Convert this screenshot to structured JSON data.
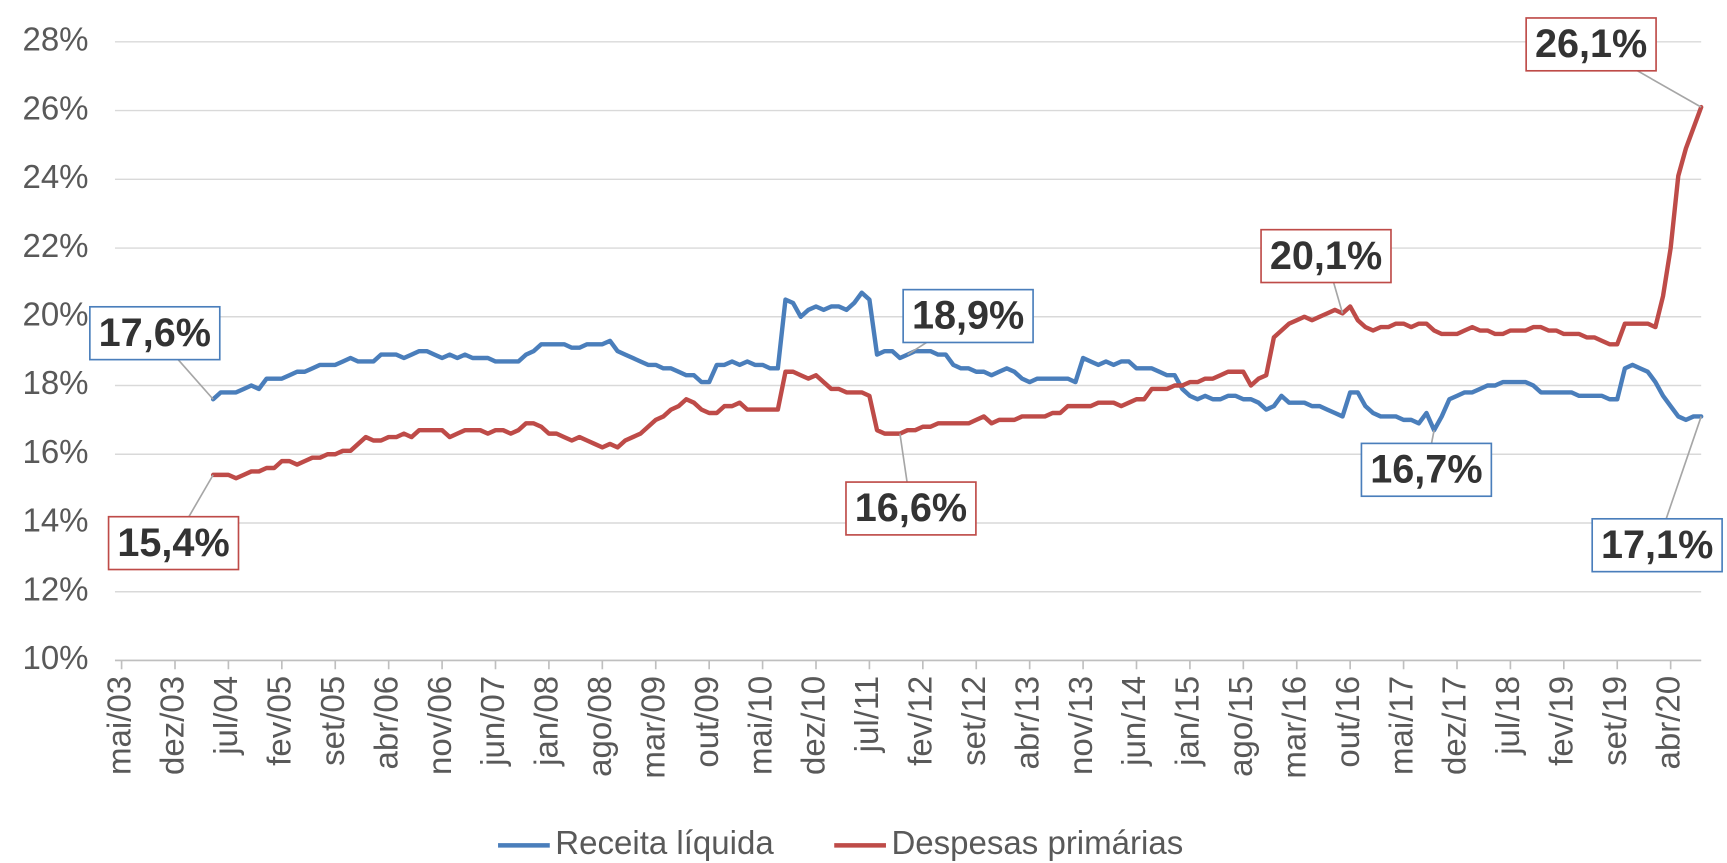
{
  "chart_data": {
    "type": "line",
    "categories": [
      "mai/03",
      null,
      null,
      null,
      null,
      null,
      null,
      "dez/03",
      null,
      null,
      null,
      null,
      null,
      null,
      "jul/04",
      null,
      null,
      null,
      null,
      null,
      null,
      "fev/05",
      null,
      null,
      null,
      null,
      null,
      null,
      "set/05",
      null,
      null,
      null,
      null,
      null,
      null,
      "abr/06",
      null,
      null,
      null,
      null,
      null,
      null,
      "nov/06",
      null,
      null,
      null,
      null,
      null,
      null,
      "jun/07",
      null,
      null,
      null,
      null,
      null,
      null,
      "jan/08",
      null,
      null,
      null,
      null,
      null,
      null,
      "ago/08",
      null,
      null,
      null,
      null,
      null,
      null,
      "mar/09",
      null,
      null,
      null,
      null,
      null,
      null,
      "out/09",
      null,
      null,
      null,
      null,
      null,
      null,
      "mai/10",
      null,
      null,
      null,
      null,
      null,
      null,
      "dez/10",
      null,
      null,
      null,
      null,
      null,
      null,
      "jul/11",
      null,
      null,
      null,
      null,
      null,
      null,
      "fev/12",
      null,
      null,
      null,
      null,
      null,
      null,
      "set/12",
      null,
      null,
      null,
      null,
      null,
      null,
      "abr/13",
      null,
      null,
      null,
      null,
      null,
      null,
      "nov/13",
      null,
      null,
      null,
      null,
      null,
      null,
      "jun/14",
      null,
      null,
      null,
      null,
      null,
      null,
      "jan/15",
      null,
      null,
      null,
      null,
      null,
      null,
      "ago/15",
      null,
      null,
      null,
      null,
      null,
      null,
      "mar/16",
      null,
      null,
      null,
      null,
      null,
      null,
      "out/16",
      null,
      null,
      null,
      null,
      null,
      null,
      "mai/17",
      null,
      null,
      null,
      null,
      null,
      null,
      "dez/17",
      null,
      null,
      null,
      null,
      null,
      null,
      "jul/18",
      null,
      null,
      null,
      null,
      null,
      null,
      "fev/19",
      null,
      null,
      null,
      null,
      null,
      null,
      "set/19",
      null,
      null,
      null,
      null,
      null,
      null,
      "abr/20",
      null,
      null,
      null,
      null
    ],
    "series": [
      {
        "name": "Receita líquida",
        "color": "#4a7ebb",
        "values": [
          null,
          null,
          null,
          null,
          null,
          null,
          null,
          null,
          null,
          null,
          null,
          null,
          17.6,
          17.8,
          17.8,
          17.8,
          17.9,
          18.0,
          17.9,
          18.2,
          18.2,
          18.2,
          18.3,
          18.4,
          18.4,
          18.5,
          18.6,
          18.6,
          18.6,
          18.7,
          18.8,
          18.7,
          18.7,
          18.7,
          18.9,
          18.9,
          18.9,
          18.8,
          18.9,
          19.0,
          19.0,
          18.9,
          18.8,
          18.9,
          18.8,
          18.9,
          18.8,
          18.8,
          18.8,
          18.7,
          18.7,
          18.7,
          18.7,
          18.9,
          19.0,
          19.2,
          19.2,
          19.2,
          19.2,
          19.1,
          19.1,
          19.2,
          19.2,
          19.2,
          19.3,
          19.0,
          18.9,
          18.8,
          18.7,
          18.6,
          18.6,
          18.5,
          18.5,
          18.4,
          18.3,
          18.3,
          18.1,
          18.1,
          18.6,
          18.6,
          18.7,
          18.6,
          18.7,
          18.6,
          18.6,
          18.5,
          18.5,
          20.5,
          20.4,
          20.0,
          20.2,
          20.3,
          20.2,
          20.3,
          20.3,
          20.2,
          20.4,
          20.7,
          20.5,
          18.9,
          19.0,
          19.0,
          18.8,
          18.9,
          19.0,
          19.0,
          19.0,
          18.9,
          18.9,
          18.6,
          18.5,
          18.5,
          18.4,
          18.4,
          18.3,
          18.4,
          18.5,
          18.4,
          18.2,
          18.1,
          18.2,
          18.2,
          18.2,
          18.2,
          18.2,
          18.1,
          18.8,
          18.7,
          18.6,
          18.7,
          18.6,
          18.7,
          18.7,
          18.5,
          18.5,
          18.5,
          18.4,
          18.3,
          18.3,
          17.9,
          17.7,
          17.6,
          17.7,
          17.6,
          17.6,
          17.7,
          17.7,
          17.6,
          17.6,
          17.5,
          17.3,
          17.4,
          17.7,
          17.5,
          17.5,
          17.5,
          17.4,
          17.4,
          17.3,
          17.2,
          17.1,
          17.8,
          17.8,
          17.4,
          17.2,
          17.1,
          17.1,
          17.1,
          17.0,
          17.0,
          16.9,
          17.2,
          16.7,
          17.1,
          17.6,
          17.7,
          17.8,
          17.8,
          17.9,
          18.0,
          18.0,
          18.1,
          18.1,
          18.1,
          18.1,
          18.0,
          17.8,
          17.8,
          17.8,
          17.8,
          17.8,
          17.7,
          17.7,
          17.7,
          17.7,
          17.6,
          17.6,
          18.5,
          18.6,
          18.5,
          18.4,
          18.1,
          17.7,
          17.4,
          17.1,
          17.0,
          17.1,
          17.1
        ],
        "value_labels": [
          null,
          null,
          null,
          null,
          null,
          null,
          null,
          null,
          null,
          null,
          null,
          null,
          "17,6%",
          null,
          null,
          null,
          null,
          null,
          null,
          null,
          null,
          null,
          null,
          null,
          null,
          null,
          null,
          null,
          null,
          null,
          null,
          null,
          null,
          null,
          null,
          null,
          null,
          null,
          null,
          null,
          null,
          null,
          null,
          null,
          null,
          null,
          null,
          null,
          null,
          null,
          null,
          null,
          null,
          null,
          null,
          null,
          null,
          null,
          null,
          null,
          null,
          null,
          null,
          null,
          null,
          null,
          null,
          null,
          null,
          null,
          null,
          null,
          null,
          null,
          null,
          null,
          null,
          null,
          null,
          null,
          null,
          null,
          null,
          null,
          null,
          null,
          null,
          null,
          null,
          null,
          null,
          null,
          null,
          null,
          null,
          null,
          null,
          null,
          null,
          null,
          null,
          null,
          null,
          "18,9%",
          null,
          null,
          null,
          null,
          null,
          null,
          null,
          null,
          null,
          null,
          null,
          null,
          null,
          null,
          null,
          null,
          null,
          null,
          null,
          null,
          null,
          null,
          null,
          null,
          null,
          null,
          null,
          null,
          null,
          null,
          null,
          null,
          null,
          null,
          null,
          null,
          null,
          null,
          null,
          null,
          null,
          null,
          null,
          null,
          null,
          null,
          null,
          null,
          null,
          null,
          null,
          null,
          null,
          null,
          null,
          null,
          null,
          null,
          null,
          null,
          null,
          null,
          null,
          null,
          null,
          null,
          null,
          null,
          "16,7%",
          null,
          null,
          null,
          null,
          null,
          null,
          null,
          null,
          null,
          null,
          null,
          null,
          null,
          null,
          null,
          null,
          null,
          null,
          null,
          null,
          null,
          null,
          null,
          null,
          null,
          null,
          null,
          null,
          null,
          null,
          null,
          null,
          null,
          null,
          "17,1%"
        ]
      },
      {
        "name": "Despesas primárias",
        "color": "#be4b48",
        "values": [
          null,
          null,
          null,
          null,
          null,
          null,
          null,
          null,
          null,
          null,
          null,
          null,
          15.4,
          15.4,
          15.4,
          15.3,
          15.4,
          15.5,
          15.5,
          15.6,
          15.6,
          15.8,
          15.8,
          15.7,
          15.8,
          15.9,
          15.9,
          16.0,
          16.0,
          16.1,
          16.1,
          16.3,
          16.5,
          16.4,
          16.4,
          16.5,
          16.5,
          16.6,
          16.5,
          16.7,
          16.7,
          16.7,
          16.7,
          16.5,
          16.6,
          16.7,
          16.7,
          16.7,
          16.6,
          16.7,
          16.7,
          16.6,
          16.7,
          16.9,
          16.9,
          16.8,
          16.6,
          16.6,
          16.5,
          16.4,
          16.5,
          16.4,
          16.3,
          16.2,
          16.3,
          16.2,
          16.4,
          16.5,
          16.6,
          16.8,
          17.0,
          17.1,
          17.3,
          17.4,
          17.6,
          17.5,
          17.3,
          17.2,
          17.2,
          17.4,
          17.4,
          17.5,
          17.3,
          17.3,
          17.3,
          17.3,
          17.3,
          18.4,
          18.4,
          18.3,
          18.2,
          18.3,
          18.1,
          17.9,
          17.9,
          17.8,
          17.8,
          17.8,
          17.7,
          16.7,
          16.6,
          16.6,
          16.6,
          16.7,
          16.7,
          16.8,
          16.8,
          16.9,
          16.9,
          16.9,
          16.9,
          16.9,
          17.0,
          17.1,
          16.9,
          17.0,
          17.0,
          17.0,
          17.1,
          17.1,
          17.1,
          17.1,
          17.2,
          17.2,
          17.4,
          17.4,
          17.4,
          17.4,
          17.5,
          17.5,
          17.5,
          17.4,
          17.5,
          17.6,
          17.6,
          17.9,
          17.9,
          17.9,
          18.0,
          18.0,
          18.1,
          18.1,
          18.2,
          18.2,
          18.3,
          18.4,
          18.4,
          18.4,
          18.0,
          18.2,
          18.3,
          19.4,
          19.6,
          19.8,
          19.9,
          20.0,
          19.9,
          20.0,
          20.1,
          20.2,
          20.1,
          20.3,
          19.9,
          19.7,
          19.6,
          19.7,
          19.7,
          19.8,
          19.8,
          19.7,
          19.8,
          19.8,
          19.6,
          19.5,
          19.5,
          19.5,
          19.6,
          19.7,
          19.6,
          19.6,
          19.5,
          19.5,
          19.6,
          19.6,
          19.6,
          19.7,
          19.7,
          19.6,
          19.6,
          19.5,
          19.5,
          19.5,
          19.4,
          19.4,
          19.3,
          19.2,
          19.2,
          19.8,
          19.8,
          19.8,
          19.8,
          19.7,
          20.6,
          22.0,
          24.1,
          24.9,
          25.5,
          26.1
        ],
        "value_labels": [
          null,
          null,
          null,
          null,
          null,
          null,
          null,
          null,
          null,
          null,
          null,
          null,
          "15,4%",
          null,
          null,
          null,
          null,
          null,
          null,
          null,
          null,
          null,
          null,
          null,
          null,
          null,
          null,
          null,
          null,
          null,
          null,
          null,
          null,
          null,
          null,
          null,
          null,
          null,
          null,
          null,
          null,
          null,
          null,
          null,
          null,
          null,
          null,
          null,
          null,
          null,
          null,
          null,
          null,
          null,
          null,
          null,
          null,
          null,
          null,
          null,
          null,
          null,
          null,
          null,
          null,
          null,
          null,
          null,
          null,
          null,
          null,
          null,
          null,
          null,
          null,
          null,
          null,
          null,
          null,
          null,
          null,
          null,
          null,
          null,
          null,
          null,
          null,
          null,
          null,
          null,
          null,
          null,
          null,
          null,
          null,
          null,
          null,
          null,
          null,
          null,
          null,
          null,
          "16,6%",
          null,
          null,
          null,
          null,
          null,
          null,
          null,
          null,
          null,
          null,
          null,
          null,
          null,
          null,
          null,
          null,
          null,
          null,
          null,
          null,
          null,
          null,
          null,
          null,
          null,
          null,
          null,
          null,
          null,
          null,
          null,
          null,
          null,
          null,
          null,
          null,
          null,
          null,
          null,
          null,
          null,
          null,
          null,
          null,
          null,
          null,
          null,
          null,
          null,
          null,
          null,
          null,
          null,
          null,
          null,
          null,
          null,
          "20,1%",
          null,
          null,
          null,
          null,
          null,
          null,
          null,
          null,
          null,
          null,
          null,
          null,
          null,
          null,
          null,
          null,
          null,
          null,
          null,
          null,
          null,
          null,
          null,
          null,
          null,
          null,
          null,
          null,
          null,
          null,
          null,
          null,
          null,
          null,
          null,
          null,
          null,
          null,
          null,
          null,
          null,
          null,
          null,
          null,
          null,
          null,
          "26,1%"
        ]
      }
    ],
    "ylim": [
      10,
      28
    ],
    "yticks": [
      {
        "value": 10,
        "label": "10%"
      },
      {
        "value": 12,
        "label": "12%"
      },
      {
        "value": 14,
        "label": "14%"
      },
      {
        "value": 16,
        "label": "16%"
      },
      {
        "value": 18,
        "label": "18%"
      },
      {
        "value": 20,
        "label": "20%"
      },
      {
        "value": 22,
        "label": "22%"
      },
      {
        "value": 24,
        "label": "24%"
      },
      {
        "value": 26,
        "label": "26%"
      },
      {
        "value": 28,
        "label": "28%"
      }
    ],
    "grid": true,
    "legend": "bottom"
  }
}
